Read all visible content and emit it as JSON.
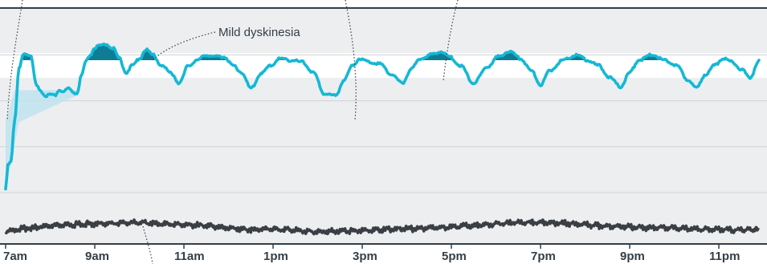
{
  "chart_data": {
    "type": "line",
    "title": "",
    "xlabel": "",
    "ylabel": "",
    "x_ticks": [
      "7am",
      "9am",
      "11am",
      "1pm",
      "3pm",
      "5pm",
      "7pm",
      "9pm",
      "11pm"
    ],
    "x_range_hours": [
      7,
      23.9
    ],
    "y_range": [
      0,
      5
    ],
    "grid": "horizontal",
    "target_band": [
      3.25,
      3.95
    ],
    "dyskinesia_threshold": 3.75,
    "annotation": "Mild dyskinesia",
    "colors": {
      "main_line": "#14b8d4",
      "dyskinesia_fill": "#0e7c93",
      "early_fill": "#bfe3ef",
      "secondary_line": "#3a3f44",
      "band": "#ffffff",
      "plot_bg": "#edeef0",
      "axis": "#333f48"
    },
    "series": [
      {
        "values_hours": [
          7.0,
          7.05,
          7.12,
          7.2,
          7.3,
          7.4,
          7.55,
          7.7,
          7.9,
          8.0,
          8.1,
          8.2,
          8.3,
          8.4,
          8.5,
          8.6,
          8.7,
          8.8,
          8.9,
          9.0,
          9.1,
          9.25,
          9.4,
          9.55,
          9.7,
          9.85,
          10.0,
          10.15,
          10.3,
          10.5,
          10.7,
          10.9,
          11.1,
          11.3,
          11.5,
          11.7,
          11.9,
          12.1,
          12.3,
          12.5,
          12.75,
          12.95,
          13.15,
          13.4,
          13.65,
          13.9,
          14.15,
          14.4,
          14.6,
          14.78,
          14.95,
          15.15,
          15.4,
          15.65,
          15.9,
          16.1,
          16.3,
          16.55,
          16.75,
          16.95,
          17.2,
          17.5,
          17.8,
          18.05,
          18.3,
          18.55,
          18.8,
          19.0,
          19.2,
          19.5,
          19.8,
          20.05,
          20.3,
          20.55,
          20.8,
          21.0,
          21.2,
          21.5,
          21.8,
          22.05,
          22.3,
          22.5,
          22.7,
          22.9,
          23.1,
          23.3,
          23.5,
          23.7,
          23.9
        ],
        "values": [
          0.1,
          0.8,
          0.9,
          2.0,
          3.5,
          3.95,
          3.9,
          3.0,
          2.75,
          2.78,
          2.75,
          2.9,
          2.85,
          2.95,
          2.85,
          2.8,
          3.3,
          3.7,
          3.9,
          4.1,
          4.15,
          4.2,
          4.1,
          3.8,
          3.4,
          3.6,
          3.8,
          4.05,
          3.9,
          3.6,
          3.4,
          3.1,
          3.6,
          3.75,
          3.9,
          3.85,
          3.85,
          3.6,
          3.4,
          2.95,
          3.4,
          3.6,
          3.8,
          3.75,
          3.7,
          3.4,
          2.8,
          2.75,
          3.2,
          3.6,
          3.8,
          3.7,
          3.65,
          3.35,
          3.1,
          3.5,
          3.8,
          3.9,
          4.0,
          3.85,
          3.6,
          3.1,
          3.55,
          3.85,
          4.0,
          3.8,
          3.45,
          3.05,
          3.45,
          3.75,
          3.9,
          3.75,
          3.6,
          3.25,
          3.0,
          3.4,
          3.75,
          3.9,
          3.75,
          3.6,
          3.2,
          2.95,
          3.35,
          3.6,
          3.8,
          3.7,
          3.5,
          3.25,
          3.75
        ]
      },
      {
        "values_hours": [
          7.0,
          7.5,
          8.0,
          8.5,
          9.0,
          9.5,
          10.0,
          10.5,
          11.0,
          11.5,
          12.0,
          12.5,
          13.0,
          13.5,
          14.0,
          14.5,
          15.0,
          15.5,
          16.0,
          16.5,
          17.0,
          17.5,
          18.0,
          18.5,
          19.0,
          19.5,
          20.0,
          20.5,
          21.0,
          21.5,
          22.0,
          22.5,
          23.0,
          23.5,
          23.9
        ],
        "values": [
          0.95,
          1.05,
          1.1,
          1.15,
          1.18,
          1.2,
          1.22,
          1.18,
          1.15,
          1.12,
          1.05,
          1.0,
          1.02,
          0.98,
          0.92,
          0.95,
          0.98,
          1.0,
          1.02,
          1.05,
          1.08,
          1.12,
          1.18,
          1.22,
          1.22,
          1.2,
          1.15,
          1.1,
          1.08,
          1.05,
          1.05,
          1.02,
          1.0,
          0.98,
          1.0
        ]
      }
    ]
  }
}
